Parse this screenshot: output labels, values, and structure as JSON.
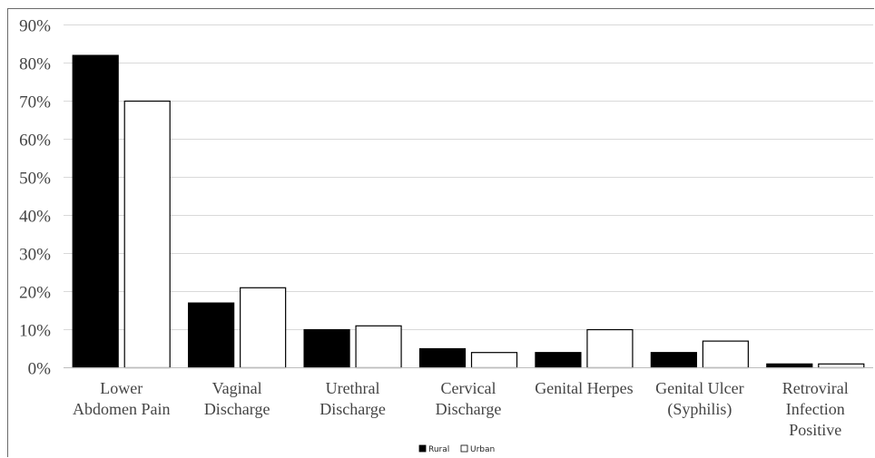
{
  "chart_data": {
    "type": "bar",
    "categories": [
      [
        "Lower",
        "Abdomen Pain"
      ],
      [
        "Vaginal",
        "Discharge"
      ],
      [
        "Urethral",
        "Discharge"
      ],
      [
        "Cervical",
        "Discharge"
      ],
      [
        "Genital Herpes"
      ],
      [
        "Genital Ulcer",
        "(Syphilis)"
      ],
      [
        "Retroviral",
        "Infection",
        "Positive"
      ]
    ],
    "series": [
      {
        "name": "Rural",
        "values": [
          82,
          17,
          10,
          5,
          4,
          4,
          1
        ],
        "color": "#000000"
      },
      {
        "name": "Urban",
        "values": [
          70,
          21,
          11,
          4,
          10,
          7,
          1
        ],
        "color": "#ffffff"
      }
    ],
    "yticks": [
      "0%",
      "10%",
      "20%",
      "30%",
      "40%",
      "50%",
      "60%",
      "70%",
      "80%",
      "90%"
    ],
    "ylim": [
      0,
      90
    ],
    "grid": true,
    "legend": "bottom"
  }
}
